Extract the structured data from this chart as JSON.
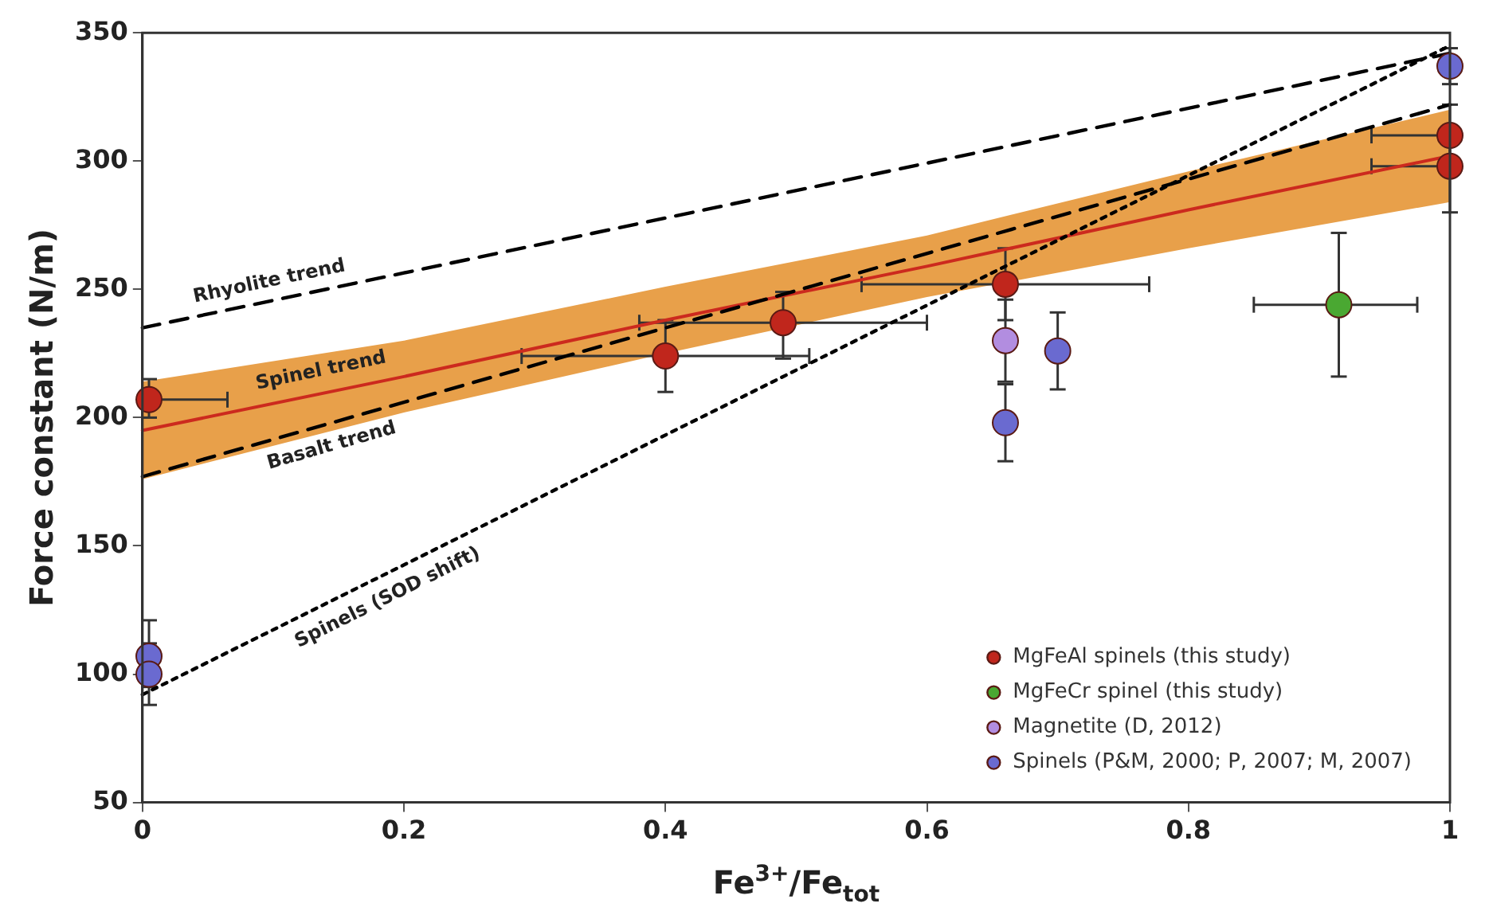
{
  "chart_data": {
    "type": "scatter",
    "xlabel": "Fe$^{3+}$/Fe$_{tot}$",
    "ylabel": "Force constant (N/m)",
    "xlim": [
      0,
      1
    ],
    "xticks": [
      0,
      0.2,
      0.4,
      0.6,
      0.8,
      1
    ],
    "ylim": [
      50,
      350
    ],
    "yticks": [
      50,
      100,
      150,
      200,
      250,
      300,
      350
    ],
    "grid": false,
    "legend": "bottom right",
    "series": [
      {
        "type": "line",
        "color": "#000000",
        "line_style": "dashed",
        "x": [
          0,
          1
        ],
        "values": [
          235,
          342
        ]
      },
      {
        "type": "line",
        "color": "#000000",
        "line_style": "dashed",
        "x": [
          0,
          1
        ],
        "values": [
          177,
          322
        ]
      },
      {
        "type": "line",
        "color": "#000000",
        "line_style": "dotted",
        "x": [
          0,
          1
        ],
        "values": [
          92,
          345
        ]
      },
      {
        "type": "line",
        "color": "#cc2a1e",
        "line_style": "solid",
        "x": [
          0,
          0.2,
          0.4,
          0.6,
          0.8,
          1
        ],
        "values": [
          195,
          216,
          238,
          259,
          281,
          302
        ],
        "lower": [
          176,
          202,
          225,
          247,
          266,
          284
        ],
        "upper": [
          214,
          230,
          251,
          271,
          296,
          320
        ]
      },
      {
        "name": "MgFeAl spinels (this study)",
        "color": "#c0261c",
        "marker": "circle",
        "x": [
          0.005,
          0.4,
          0.49,
          0.66,
          1,
          1
        ],
        "values": [
          207,
          224,
          237,
          252,
          310,
          298
        ],
        "errors": [
          [
            200,
            215
          ],
          [
            210,
            238
          ],
          [
            223,
            249
          ],
          [
            238,
            266
          ],
          [
            298,
            322
          ],
          [
            280,
            312
          ]
        ],
        "xerrors": [
          [
            0.005,
            0.065
          ],
          [
            0.29,
            0.51
          ],
          [
            0.38,
            0.6
          ],
          [
            0.55,
            0.77
          ],
          [
            0.94,
            1
          ],
          [
            0.94,
            1
          ]
        ]
      },
      {
        "name": "MgFeCr spinel (this study)",
        "color": "#4aa832",
        "marker": "circle",
        "x": [
          0.915
        ],
        "values": [
          244
        ],
        "errors": [
          [
            216,
            272
          ]
        ],
        "xerrors": [
          [
            0.85,
            0.975
          ]
        ]
      },
      {
        "name": "Magnetite (D, 2012)",
        "color": "#b28de0",
        "marker": "circle",
        "x": [
          0.66
        ],
        "values": [
          230
        ],
        "errors": [
          [
            214,
            246
          ]
        ]
      },
      {
        "name": "Spinels (P&M, 2000; P, 2007; M, 2007)",
        "color": "#6a6ad0",
        "marker": "circle",
        "x": [
          0.66,
          0.7,
          0.005,
          0.005,
          1
        ],
        "values": [
          198,
          226,
          107,
          100,
          337
        ],
        "errors": [
          [
            183,
            213
          ],
          [
            211,
            241
          ],
          [
            95,
            121
          ],
          [
            88,
            112
          ],
          [
            330,
            344
          ]
        ]
      }
    ],
    "annotations": [
      "Rhyolite trend",
      "Basalt trend",
      "Spinels (SOD shift)",
      "Spinel trend"
    ]
  }
}
